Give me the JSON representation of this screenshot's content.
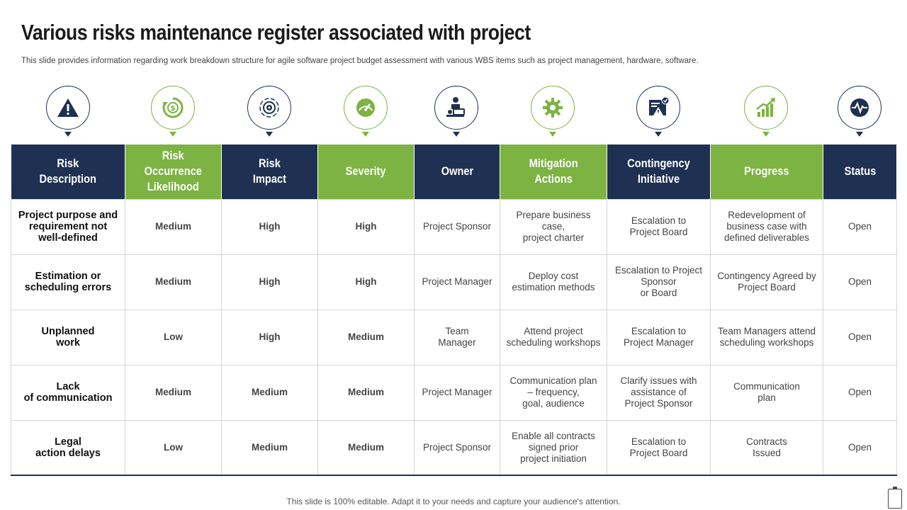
{
  "title": "Various risks maintenance register associated with project",
  "subtitle": "This slide provides information regarding work breakdown structure for agile software project budget assessment with various WBS items such as project management, hardware, software.",
  "icons": [
    {
      "name": "warning-icon",
      "color": "navy"
    },
    {
      "name": "currency-cycle-icon",
      "color": "green"
    },
    {
      "name": "target-gear-icon",
      "color": "navy"
    },
    {
      "name": "gauge-icon",
      "color": "green"
    },
    {
      "name": "presenter-icon",
      "color": "navy"
    },
    {
      "name": "gear-icon",
      "color": "green"
    },
    {
      "name": "alert-document-icon",
      "color": "navy"
    },
    {
      "name": "growth-chart-icon",
      "color": "green"
    },
    {
      "name": "pulse-icon",
      "color": "navy"
    }
  ],
  "colors": {
    "navy": "#1f3152",
    "green": "#7cb342",
    "high": "#e02020",
    "medium": "#f0b400",
    "low": "#2ea043"
  },
  "table": {
    "headers": [
      "Risk\nDescription",
      "Risk\nOccurrence\nLikelihood",
      "Risk\nImpact",
      "Severity",
      "Owner",
      "Mitigation\nActions",
      "Contingency\nInitiative",
      "Progress",
      "Status"
    ],
    "rows": [
      {
        "description": "Project purpose and\nrequirement not\nwell-defined",
        "likelihood": "Medium",
        "impact": "High",
        "severity": "High",
        "owner": "Project Sponsor",
        "mitigation": "Prepare business\ncase,\nproject charter",
        "contingency": "Escalation to\nProject Board",
        "progress": "Redevelopment  of\nbusiness case with\ndefined deliverables",
        "status": "Open"
      },
      {
        "description": "Estimation or\nscheduling errors",
        "likelihood": "Medium",
        "impact": "High",
        "severity": "High",
        "owner": "Project Manager",
        "mitigation": "Deploy cost\nestimation methods",
        "contingency": "Escalation to Project\nSponsor\nor Board",
        "progress": "Contingency Agreed by\nProject Board",
        "status": "Open"
      },
      {
        "description": "Unplanned\nwork",
        "likelihood": "Low",
        "impact": "High",
        "severity": "Medium",
        "owner": "Team\nManager",
        "mitigation": "Attend project\nscheduling workshops",
        "contingency": "Escalation to\nProject Manager",
        "progress": "Team Managers attend\nscheduling workshops",
        "status": "Open"
      },
      {
        "description": "Lack\nof communication",
        "likelihood": "Medium",
        "impact": "Medium",
        "severity": "Medium",
        "owner": "Project Manager",
        "mitigation": "Communication plan\n– frequency,\ngoal, audience",
        "contingency": "Clarify issues with\nassistance of\nProject Sponsor",
        "progress": "Communication\nplan",
        "status": "Open"
      },
      {
        "description": "Legal\naction delays",
        "likelihood": "Low",
        "impact": "Medium",
        "severity": "Medium",
        "owner": "Project Sponsor",
        "mitigation": "Enable all contracts\nsigned prior\nproject initiation",
        "contingency": "Escalation to\nProject Board",
        "progress": "Contracts\nIssued",
        "status": "Open"
      }
    ]
  },
  "footer": "This slide is 100% editable. Adapt it to your needs and capture your audience's attention."
}
